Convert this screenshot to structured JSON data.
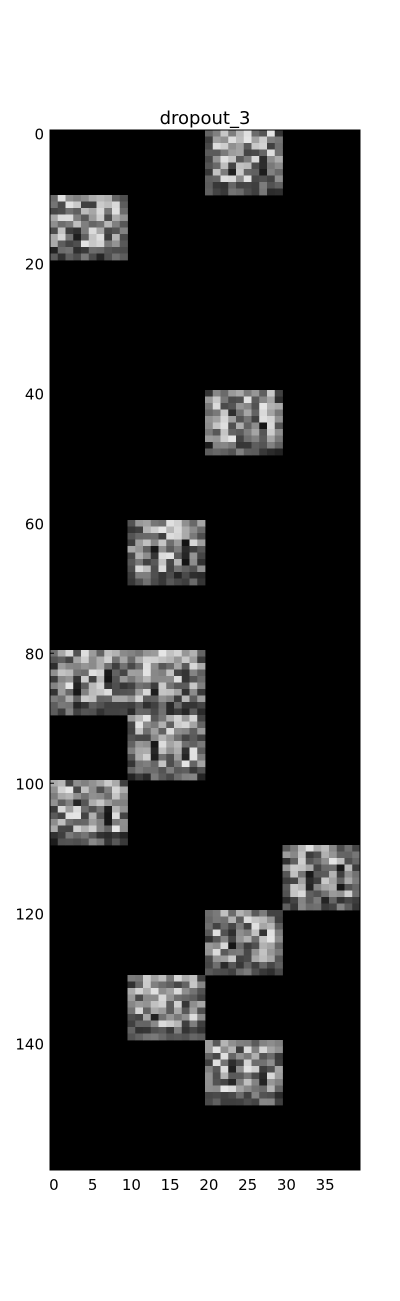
{
  "chart_data": {
    "type": "heatmap",
    "title": "dropout_3",
    "xlabel": "",
    "ylabel": "",
    "colormap": "gray",
    "background_color": "#000000",
    "xlim": [
      0,
      40
    ],
    "ylim": [
      160,
      0
    ],
    "xticks": [
      0,
      5,
      10,
      15,
      20,
      25,
      30,
      35
    ],
    "yticks": [
      0,
      20,
      40,
      60,
      80,
      100,
      120,
      140
    ],
    "grid": false,
    "tile_shape": [
      10,
      10
    ],
    "active_tiles": [
      {
        "row": 0,
        "col": 20
      },
      {
        "row": 10,
        "col": 0
      },
      {
        "row": 40,
        "col": 20
      },
      {
        "row": 60,
        "col": 10
      },
      {
        "row": 80,
        "col": 0
      },
      {
        "row": 80,
        "col": 10
      },
      {
        "row": 90,
        "col": 10
      },
      {
        "row": 100,
        "col": 0
      },
      {
        "row": 110,
        "col": 30
      },
      {
        "row": 120,
        "col": 20
      },
      {
        "row": 130,
        "col": 10
      },
      {
        "row": 140,
        "col": 20
      }
    ]
  }
}
